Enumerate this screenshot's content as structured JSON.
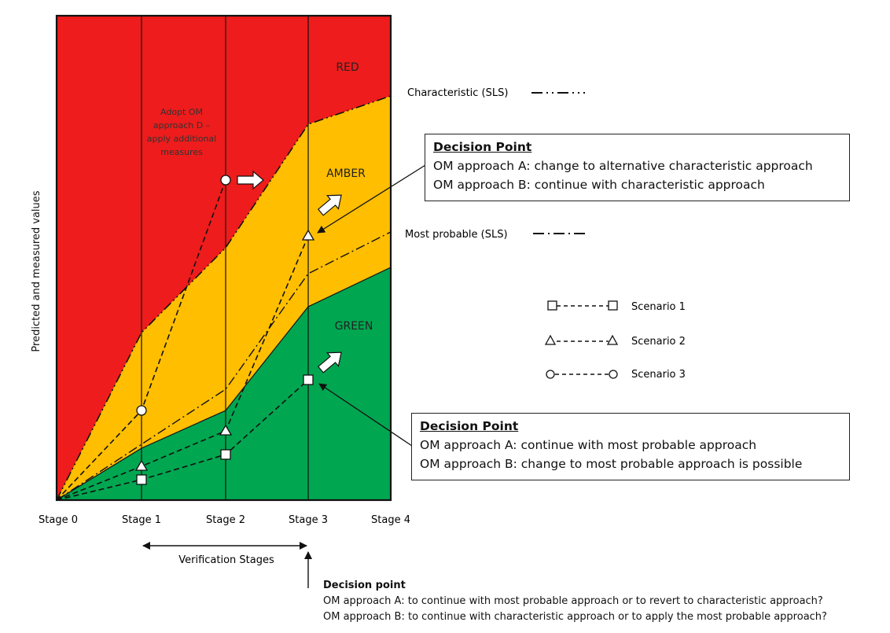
{
  "zones": {
    "red": {
      "label": "RED",
      "color": "#EE1C1C"
    },
    "amber": {
      "label": "AMBER",
      "color": "#FFBE00"
    },
    "green": {
      "label": "GREEN",
      "color": "#00A650"
    }
  },
  "y_axis_label": "Predicted and measured values",
  "stages": [
    "Stage 0",
    "Stage 1",
    "Stage 2",
    "Stage 3",
    "Stage 4"
  ],
  "verification_label": "Verification Stages",
  "adopt_note": [
    "Adopt OM",
    "approach D –",
    "apply additional",
    "measures"
  ],
  "legend_lines": {
    "characteristic": "Characteristic (SLS)",
    "most_probable": "Most probable (SLS)"
  },
  "legend_scenarios": [
    "Scenario 1",
    "Scenario 2",
    "Scenario 3"
  ],
  "decision_top": {
    "title": "Decision Point",
    "line_a": "OM approach A: change to alternative characteristic approach",
    "line_b": "OM approach B: continue with characteristic approach"
  },
  "decision_mid": {
    "title": "Decision Point",
    "line_a": "OM approach A: continue with most probable approach",
    "line_b": "OM approach B: change to most probable approach is possible"
  },
  "decision_bottom": {
    "title": "Decision point",
    "line_a": "OM approach A: to continue with most probable approach or to revert to characteristic approach?",
    "line_b": "OM approach B: to continue with characteristic approach or to apply the most probable approach?"
  }
}
